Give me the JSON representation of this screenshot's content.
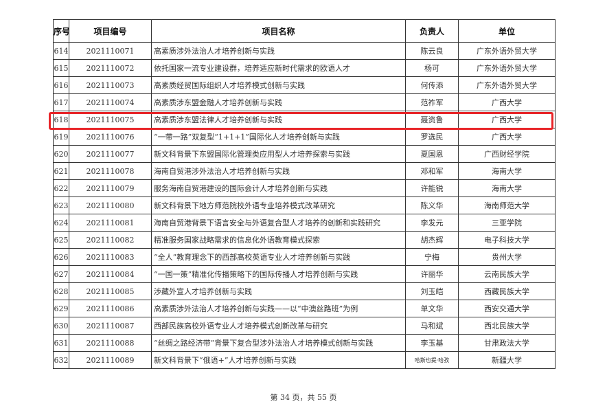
{
  "table": {
    "headers": [
      "序号",
      "项目编号",
      "项目名称",
      "负责人",
      "单位"
    ],
    "rows": [
      [
        "614",
        "2021110071",
        "高素质涉外法治人才培养创新与实践",
        "陈云良",
        "广东外语外贸大学"
      ],
      [
        "615",
        "2021110072",
        "依托国家一流专业建设群，培养适应新时代需求的欧语人才",
        "杨可",
        "广东外语外贸大学"
      ],
      [
        "616",
        "2021110073",
        "高素质经贸国际组织人才培养模式创新与实践",
        "何传添",
        "广东外语外贸大学"
      ],
      [
        "617",
        "2021110074",
        "高素质涉东盟金融人才培养创新与实践",
        "范祚军",
        "广西大学"
      ],
      [
        "618",
        "2021110075",
        "高素质涉东盟法律人才培养创新与实践",
        "聂资鲁",
        "广西大学"
      ],
      [
        "619",
        "2021110076",
        "“一带一路”双复型“1+1+1”国际化人才培养创新与实践",
        "罗选民",
        "广西大学"
      ],
      [
        "620",
        "2021110077",
        "新文科背景下东盟国际化管理类应用型人才培养探索与实践",
        "夏国恩",
        "广西财经学院"
      ],
      [
        "621",
        "2021110078",
        "海南自贸港涉外法治人才培养创新与实践",
        "邓和军",
        "海南大学"
      ],
      [
        "622",
        "2021110079",
        "服务海南自贸港建设的国际会计人才培养创新与实践",
        "许能锐",
        "海南大学"
      ],
      [
        "623",
        "2021110080",
        "新文科背景下地方师范院校外语专业培养模式改革研究",
        "陈义华",
        "海南师范大学"
      ],
      [
        "624",
        "2021110081",
        "海南自贸港背景下语言安全与外语复合型人才培养的创新和实践研究",
        "李发元",
        "三亚学院"
      ],
      [
        "625",
        "2021110082",
        "精准服务国家战略需求的信息化外语教育模式探索",
        "胡杰辉",
        "电子科技大学"
      ],
      [
        "626",
        "2021110083",
        "“全人”教育理念下的西部高校英语专业人才培养创新与实践",
        "宁梅",
        "贵州大学"
      ],
      [
        "627",
        "2021110084",
        "“一国一策”精准化传播策略下的国际传播人才培养创新与实践",
        "许丽华",
        "云南民族大学"
      ],
      [
        "628",
        "2021110085",
        "涉藏外宣人才培养创新与实践",
        "刘玉皑",
        "西藏民族大学"
      ],
      [
        "629",
        "2021110086",
        "高素质涉外法治人才培养创新与实践——以“中澳丝路班”为例",
        "单文华",
        "西安交通大学"
      ],
      [
        "630",
        "2021110087",
        "西部民族高校外语专业人才培养模式创新改革与研究",
        "马和斌",
        "西北民族大学"
      ],
      [
        "631",
        "2021110088",
        "“丝绸之路经济带”背景下复合型涉外法治人才培养模式创新与实践",
        "李玉基",
        "甘肃政法大学"
      ],
      [
        "632",
        "2021110089",
        "新文科背景下“俄语+”人才培养创新与实践",
        "哈斯也提·哈孜",
        "新疆大学"
      ]
    ],
    "highlighted_row": "618",
    "highlight_color": "#e8262a"
  },
  "footer": {
    "page_text": "第 34 页，共 55 页"
  }
}
